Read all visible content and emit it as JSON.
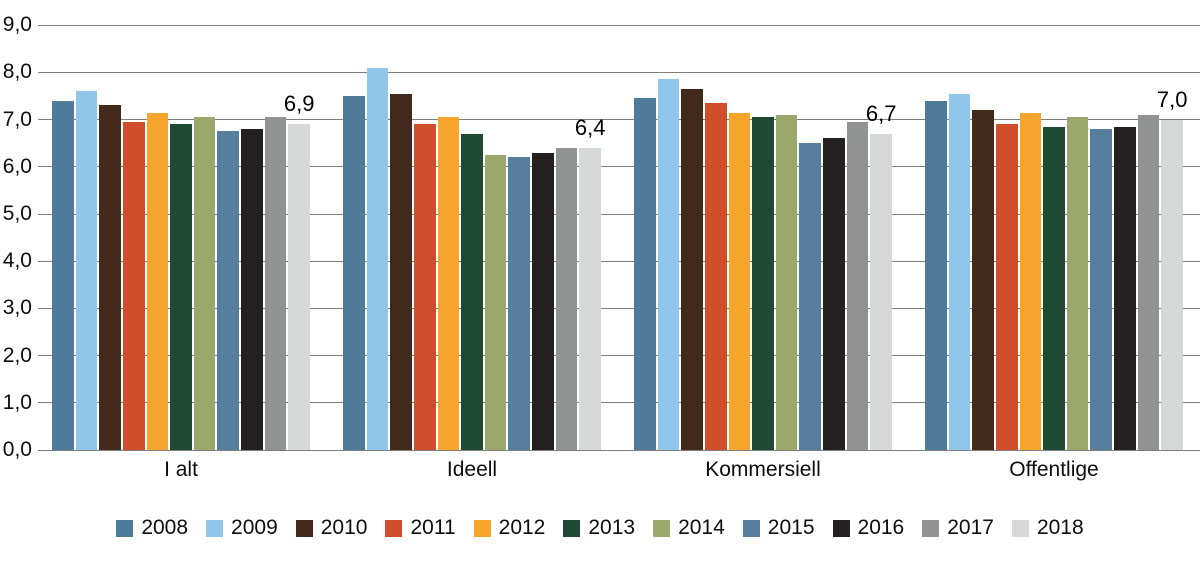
{
  "chart_data": {
    "type": "bar",
    "title": "",
    "xlabel": "",
    "ylabel": "",
    "ylim": [
      0,
      9
    ],
    "ytick_step": 1.0,
    "yticklabels": [
      "0,0",
      "1,0",
      "2,0",
      "3,0",
      "4,0",
      "5,0",
      "6,0",
      "7,0",
      "8,0",
      "9,0"
    ],
    "grid": true,
    "legend_position": "bottom",
    "decimal_separator": ",",
    "categories": [
      "I alt",
      "Ideell",
      "Kommersiell",
      "Offentlige"
    ],
    "series": [
      {
        "name": "2008",
        "color": "#4E7B99",
        "values": [
          7.4,
          7.5,
          7.45,
          7.4
        ]
      },
      {
        "name": "2009",
        "color": "#8FC6E9",
        "values": [
          7.6,
          8.1,
          7.85,
          7.55
        ]
      },
      {
        "name": "2010",
        "color": "#43281C",
        "values": [
          7.3,
          7.55,
          7.65,
          7.2
        ]
      },
      {
        "name": "2011",
        "color": "#D04F2A",
        "values": [
          6.95,
          6.9,
          7.35,
          6.9
        ]
      },
      {
        "name": "2012",
        "color": "#F7A42D",
        "values": [
          7.15,
          7.05,
          7.15,
          7.15
        ]
      },
      {
        "name": "2013",
        "color": "#1E4A34",
        "values": [
          6.9,
          6.7,
          7.05,
          6.85
        ]
      },
      {
        "name": "2014",
        "color": "#9BA86B",
        "values": [
          7.05,
          6.25,
          7.1,
          7.05
        ]
      },
      {
        "name": "2015",
        "color": "#557F9D",
        "values": [
          6.75,
          6.2,
          6.5,
          6.8
        ]
      },
      {
        "name": "2016",
        "color": "#241F20",
        "values": [
          6.8,
          6.3,
          6.6,
          6.85
        ]
      },
      {
        "name": "2017",
        "color": "#919392",
        "values": [
          7.05,
          6.4,
          6.95,
          7.1
        ]
      },
      {
        "name": "2018",
        "color": "#D7D9D8",
        "values": [
          6.9,
          6.4,
          6.7,
          7.0
        ]
      }
    ],
    "value_labels_on_series": "2018",
    "value_labels": [
      "6,9",
      "6,4",
      "6,7",
      "7,0"
    ]
  },
  "colors": {
    "background": "#FFFFFF",
    "gridline": "#7F7F7F",
    "text": "#0D0D0D"
  }
}
